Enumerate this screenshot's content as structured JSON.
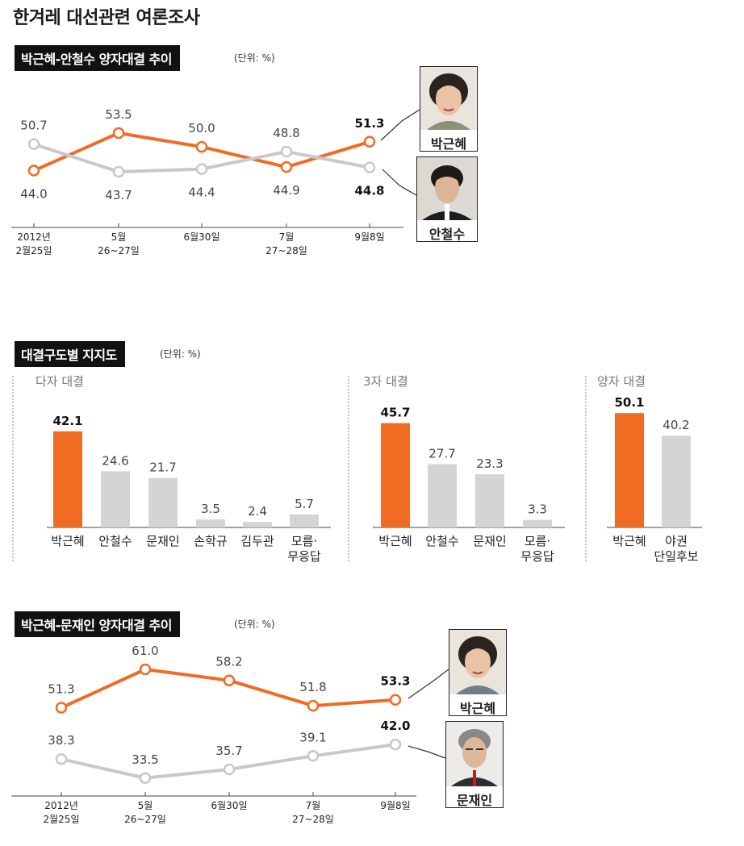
{
  "title": "한겨레 대선관련 여론조사",
  "chart_data": [
    {
      "type": "line",
      "title": "박근혜-안철수 양자대결 추이",
      "unit": "(단위: %)",
      "x": [
        {
          "line1": "2012년",
          "line2": "2월25일"
        },
        {
          "line1": "5월",
          "line2": "26~27일"
        },
        {
          "line1": "6월30일",
          "line2": ""
        },
        {
          "line1": "7월",
          "line2": "27~28일"
        },
        {
          "line1": "9월8일",
          "line2": ""
        }
      ],
      "series": [
        {
          "name": "박근혜",
          "color": "#ef6c22",
          "values": [
            44.0,
            53.5,
            50.0,
            44.9,
            51.3
          ],
          "labels": [
            "44.0",
            "53.5",
            "50.0",
            "44.9",
            "51.3"
          ]
        },
        {
          "name": "안철수",
          "color": "#c8c8c8",
          "values": [
            50.7,
            43.7,
            44.4,
            48.8,
            44.8
          ],
          "labels": [
            "50.7",
            "43.7",
            "44.4",
            "48.8",
            "44.8"
          ]
        }
      ]
    },
    {
      "type": "bar",
      "title": "대결구도별 지지도",
      "unit": "(단위: %)",
      "groups": [
        {
          "name": "다자 대결",
          "categories": [
            "박근혜",
            "안철수",
            "문재인",
            "손학규",
            "김두관",
            "모름·|무응답"
          ],
          "values": [
            42.1,
            24.6,
            21.7,
            3.5,
            2.4,
            5.7
          ],
          "labels": [
            "42.1",
            "24.6",
            "21.7",
            "3.5",
            "2.4",
            "5.7"
          ]
        },
        {
          "name": "3자 대결",
          "categories": [
            "박근혜",
            "안철수",
            "문재인",
            "모름·|무응답"
          ],
          "values": [
            45.7,
            27.7,
            23.3,
            3.3
          ],
          "labels": [
            "45.7",
            "27.7",
            "23.3",
            "3.3"
          ]
        },
        {
          "name": "양자 대결",
          "categories": [
            "박근혜",
            "야권|단일후보"
          ],
          "values": [
            50.1,
            40.2
          ],
          "labels": [
            "50.1",
            "40.2"
          ]
        }
      ],
      "colors": {
        "highlight": "#ef6c22",
        "other": "#d4d4d4"
      }
    },
    {
      "type": "line",
      "title": "박근혜-문재인 양자대결 추이",
      "unit": "(단위: %)",
      "x": [
        {
          "line1": "2012년",
          "line2": "2월25일"
        },
        {
          "line1": "5월",
          "line2": "26~27일"
        },
        {
          "line1": "6월30일",
          "line2": ""
        },
        {
          "line1": "7월",
          "line2": "27~28일"
        },
        {
          "line1": "9월8일",
          "line2": ""
        }
      ],
      "series": [
        {
          "name": "박근혜",
          "color": "#ef6c22",
          "values": [
            51.3,
            61.0,
            58.2,
            51.8,
            53.3
          ],
          "labels": [
            "51.3",
            "61.0",
            "58.2",
            "51.8",
            "53.3"
          ]
        },
        {
          "name": "문재인",
          "color": "#c8c8c8",
          "values": [
            38.3,
            33.5,
            35.7,
            39.1,
            42.0
          ],
          "labels": [
            "38.3",
            "33.5",
            "35.7",
            "39.1",
            "42.0"
          ]
        }
      ]
    }
  ],
  "portraits": {
    "chart1": [
      "박근혜",
      "안철수"
    ],
    "chart3": [
      "박근혜",
      "문재인"
    ]
  }
}
